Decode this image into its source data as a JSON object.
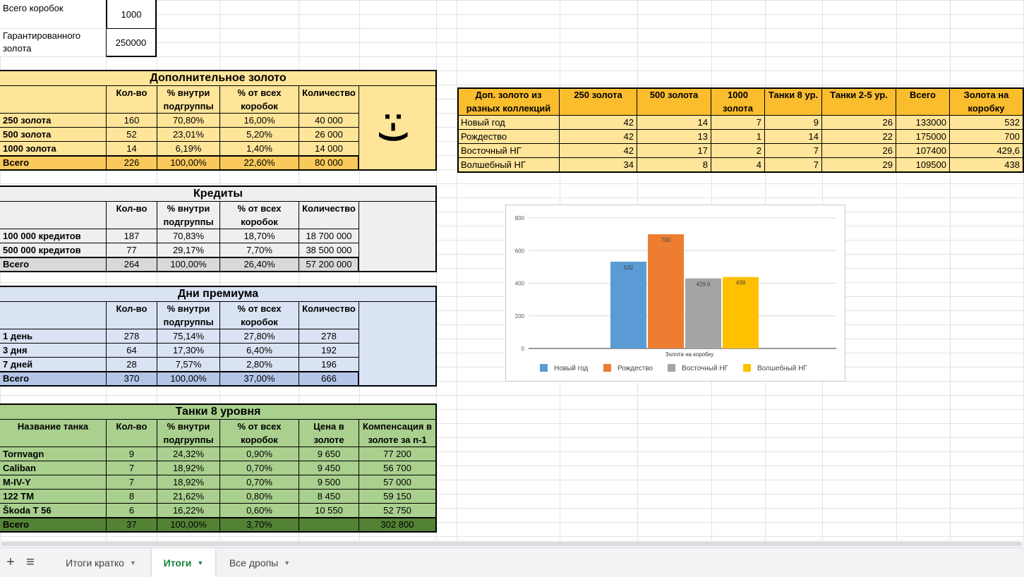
{
  "summary": {
    "total_boxes_label": "Всего коробок",
    "total_boxes_value": "1000",
    "guaranteed_gold_label": "Гарантированного золота",
    "guaranteed_gold_value": "250000"
  },
  "headers": {
    "count": "Кол-во",
    "pct_subgroup": "% внутри подгруппы",
    "pct_all": "% от всех коробок",
    "quantity": "Количество",
    "total": "Всего"
  },
  "gold": {
    "title": "Дополнительное золото",
    "rows": [
      {
        "name": "250 золота",
        "count": "160",
        "pct_sub": "70,80%",
        "pct_all": "16,00%",
        "qty": "40 000"
      },
      {
        "name": "500 золота",
        "count": "52",
        "pct_sub": "23,01%",
        "pct_all": "5,20%",
        "qty": "26 000"
      },
      {
        "name": "1000 золота",
        "count": "14",
        "pct_sub": "6,19%",
        "pct_all": "1,40%",
        "qty": "14 000"
      }
    ],
    "total": {
      "count": "226",
      "pct_sub": "100,00%",
      "pct_all": "22,60%",
      "qty": "80 000"
    },
    "smiley": ":-)"
  },
  "credits": {
    "title": "Кредиты",
    "rows": [
      {
        "name": "100 000 кредитов",
        "count": "187",
        "pct_sub": "70,83%",
        "pct_all": "18,70%",
        "qty": "18 700 000"
      },
      {
        "name": "500 000 кредитов",
        "count": "77",
        "pct_sub": "29,17%",
        "pct_all": "7,70%",
        "qty": "38 500 000"
      }
    ],
    "total": {
      "count": "264",
      "pct_sub": "100,00%",
      "pct_all": "26,40%",
      "qty": "57 200 000"
    }
  },
  "premium": {
    "title": "Дни премиума",
    "rows": [
      {
        "name": "1 день",
        "count": "278",
        "pct_sub": "75,14%",
        "pct_all": "27,80%",
        "qty": "278"
      },
      {
        "name": "3 дня",
        "count": "64",
        "pct_sub": "17,30%",
        "pct_all": "6,40%",
        "qty": "192"
      },
      {
        "name": "7 дней",
        "count": "28",
        "pct_sub": "7,57%",
        "pct_all": "2,80%",
        "qty": "196"
      }
    ],
    "total": {
      "count": "370",
      "pct_sub": "100,00%",
      "pct_all": "37,00%",
      "qty": "666"
    }
  },
  "tanks": {
    "title": "Танки 8 уровня",
    "name_header": "Название танка",
    "price_header": "Цена в золоте",
    "comp_header": "Компенсация в золоте за n-1",
    "rows": [
      {
        "name": "Tornvagn",
        "count": "9",
        "pct_sub": "24,32%",
        "pct_all": "0,90%",
        "price": "9 650",
        "comp": "77 200"
      },
      {
        "name": "Caliban",
        "count": "7",
        "pct_sub": "18,92%",
        "pct_all": "0,70%",
        "price": "9 450",
        "comp": "56 700"
      },
      {
        "name": "M-IV-Y",
        "count": "7",
        "pct_sub": "18,92%",
        "pct_all": "0,70%",
        "price": "9 500",
        "comp": "57 000"
      },
      {
        "name": "122 TM",
        "count": "8",
        "pct_sub": "21,62%",
        "pct_all": "0,80%",
        "price": "8 450",
        "comp": "59 150"
      },
      {
        "name": "Škoda T 56",
        "count": "6",
        "pct_sub": "16,22%",
        "pct_all": "0,60%",
        "price": "10 550",
        "comp": "52 750"
      }
    ],
    "total": {
      "count": "37",
      "pct_sub": "100,00%",
      "pct_all": "3,70%",
      "price": "",
      "comp": "302 800"
    }
  },
  "collections": {
    "headers": [
      "Доп. золото из разных коллекций",
      "250 золота",
      "500 золота",
      "1000 золота",
      "Танки 8 ур.",
      "Танки 2-5 ур.",
      "Всего",
      "Золота на коробку"
    ],
    "rows": [
      [
        "Новый год",
        "42",
        "14",
        "7",
        "9",
        "26",
        "133000",
        "532"
      ],
      [
        "Рождество",
        "42",
        "13",
        "1",
        "14",
        "22",
        "175000",
        "700"
      ],
      [
        "Восточный НГ",
        "42",
        "17",
        "2",
        "7",
        "26",
        "107400",
        "429,6"
      ],
      [
        "Волшебный НГ",
        "34",
        "8",
        "4",
        "7",
        "29",
        "109500",
        "438"
      ]
    ]
  },
  "chart_data": {
    "type": "bar",
    "categories": [
      "Золота на коробку"
    ],
    "series": [
      {
        "name": "Новый год",
        "values": [
          532
        ],
        "label": "532",
        "color": "#5b9bd5"
      },
      {
        "name": "Рождество",
        "values": [
          700
        ],
        "label": "700",
        "color": "#ed7d31"
      },
      {
        "name": "Восточный НГ",
        "values": [
          429.6
        ],
        "label": "429,6",
        "color": "#a5a5a5"
      },
      {
        "name": "Волшебный НГ",
        "values": [
          438
        ],
        "label": "438",
        "color": "#ffc000"
      }
    ],
    "yticks": [
      "0",
      "200",
      "400",
      "600",
      "800"
    ],
    "ylim": [
      0,
      800
    ],
    "xlabel": "Золота на коробку",
    "legend": "bottom",
    "grid": true
  },
  "colors": {
    "gold_bg": "#ffe599",
    "gold_total": "#f9c95b",
    "credits_bg": "#efefef",
    "credits_total": "#d9d9d9",
    "premium_bg": "#dae3f3",
    "premium_total": "#b4c6e7",
    "tanks_bg": "#a9d08e",
    "tanks_total": "#548235",
    "collections_header": "#f9bd2e",
    "collections_bg": "#ffe599"
  },
  "tabs": [
    {
      "label": "Итоги кратко",
      "active": false
    },
    {
      "label": "Итоги",
      "active": true
    },
    {
      "label": "Все дропы",
      "active": false
    }
  ],
  "icons": {
    "add": "plus-icon",
    "menu": "list-icon",
    "dropdown": "caret-down-icon"
  }
}
